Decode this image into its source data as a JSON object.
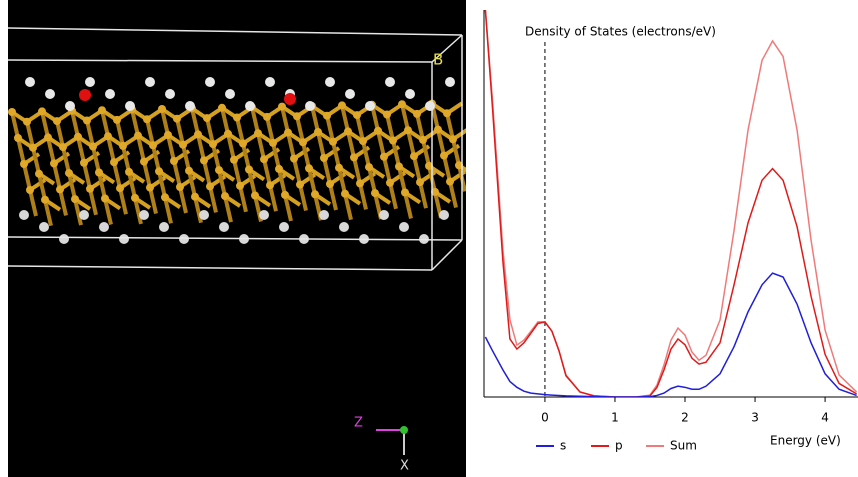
{
  "viewer": {
    "labels": {
      "cell_axis": "B",
      "z_axis": "Z",
      "x_axis": "X"
    }
  },
  "chart_data": {
    "type": "line",
    "title": "Density of States (electrons/eV)",
    "x_label": "Energy (eV)",
    "x": [
      -0.85,
      -0.75,
      -0.6,
      -0.5,
      -0.4,
      -0.3,
      -0.2,
      -0.1,
      0,
      0.1,
      0.2,
      0.3,
      0.5,
      0.7,
      1.0,
      1.3,
      1.5,
      1.6,
      1.7,
      1.8,
      1.9,
      2.0,
      2.1,
      2.2,
      2.3,
      2.5,
      2.7,
      2.9,
      3.1,
      3.25,
      3.4,
      3.6,
      3.8,
      4.0,
      4.2,
      4.45
    ],
    "series": [
      {
        "name": "s",
        "color": "#1f1fdc",
        "values": [
          15.5,
          12,
          7,
          4,
          2.5,
          1.5,
          1,
          0.8,
          0.6,
          0.5,
          0.4,
          0.3,
          0.2,
          0.1,
          0,
          0,
          0.1,
          0.4,
          1,
          2.2,
          2.8,
          2.5,
          2,
          2,
          2.8,
          6,
          13,
          22,
          29,
          32,
          31,
          24,
          14,
          6,
          2,
          0.4
        ]
      },
      {
        "name": "p",
        "color": "#e01a1a",
        "values": [
          100,
          75,
          35,
          15,
          12.4,
          14,
          16.5,
          19,
          19.4,
          17,
          12,
          5.5,
          1.3,
          0.3,
          0,
          0,
          0.3,
          2.5,
          7,
          12.4,
          15,
          13.5,
          10,
          8.5,
          9,
          14,
          29,
          45,
          56,
          59,
          56,
          44,
          26,
          11,
          3.5,
          0.8
        ]
      },
      {
        "name": "Sum",
        "color": "#f07a7a",
        "values": [
          100,
          77,
          38,
          20,
          13.4,
          14.7,
          17,
          19.4,
          19.4,
          17,
          12,
          5.7,
          1.3,
          0.3,
          0,
          0,
          0.5,
          3.1,
          8.3,
          14.7,
          17.8,
          16,
          11.6,
          9.5,
          10.8,
          19.9,
          43,
          69,
          87,
          92,
          88,
          69,
          40.5,
          17.3,
          5.7,
          1.3
        ]
      }
    ],
    "fermi_level": 0,
    "xlim": [
      -0.87,
      4.47
    ],
    "ylim": [
      0,
      100
    ],
    "xticks": [
      0,
      1,
      2,
      3,
      4
    ]
  }
}
